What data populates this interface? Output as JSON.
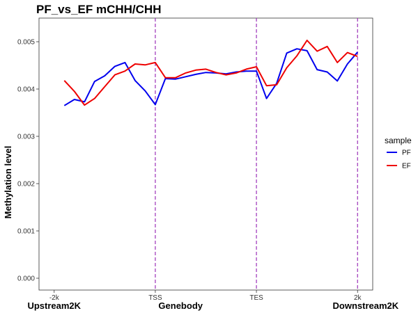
{
  "chart_data": {
    "type": "line",
    "title": "PF_vs_EF  mCHH/CHH",
    "xlabel": "",
    "ylabel": "Methylation level",
    "ylim": [
      -0.00025,
      0.0055
    ],
    "yticks": [
      "0.000",
      "0.001",
      "0.002",
      "0.003",
      "0.004",
      "0.005"
    ],
    "ytick_values": [
      0,
      0.001,
      0.002,
      0.003,
      0.004,
      0.005
    ],
    "xlim": [
      -1.5,
      31.5
    ],
    "xticks": [
      "-2k",
      "TSS",
      "TES",
      "2k"
    ],
    "xtick_positions": [
      0,
      10,
      20,
      30
    ],
    "region_labels": [
      "Upstream2K",
      "Genebody",
      "Downstream2K"
    ],
    "region_positions": [
      0,
      12.5,
      30.8
    ],
    "vlines": [
      10,
      20,
      30
    ],
    "vline_color": "#9b30b8",
    "legend_title": "sample",
    "legend_position": "right",
    "grid": false,
    "x": [
      1,
      2,
      3,
      4,
      5,
      6,
      7,
      8,
      9,
      10,
      11,
      12,
      13,
      14,
      15,
      16,
      17,
      18,
      19,
      20,
      21,
      22,
      23,
      24,
      25,
      26,
      27,
      28,
      29,
      30
    ],
    "series": [
      {
        "name": "PF",
        "color": "#0000ee",
        "values": [
          0.00365,
          0.00378,
          0.00373,
          0.00416,
          0.00428,
          0.00448,
          0.00456,
          0.00418,
          0.00396,
          0.00367,
          0.00422,
          0.00421,
          0.00426,
          0.00431,
          0.00435,
          0.00434,
          0.00432,
          0.00436,
          0.00438,
          0.00438,
          0.0038,
          0.00412,
          0.00476,
          0.00485,
          0.00481,
          0.00441,
          0.00436,
          0.00417,
          0.00453,
          0.00478
        ]
      },
      {
        "name": "EF",
        "color": "#ee0000",
        "values": [
          0.00418,
          0.00395,
          0.00366,
          0.0038,
          0.00405,
          0.0043,
          0.00438,
          0.00453,
          0.00451,
          0.00456,
          0.00424,
          0.00424,
          0.00434,
          0.0044,
          0.00442,
          0.00435,
          0.0043,
          0.00434,
          0.00442,
          0.00447,
          0.00407,
          0.00409,
          0.00445,
          0.0047,
          0.00503,
          0.0048,
          0.0049,
          0.00456,
          0.00477,
          0.00469
        ]
      }
    ]
  }
}
